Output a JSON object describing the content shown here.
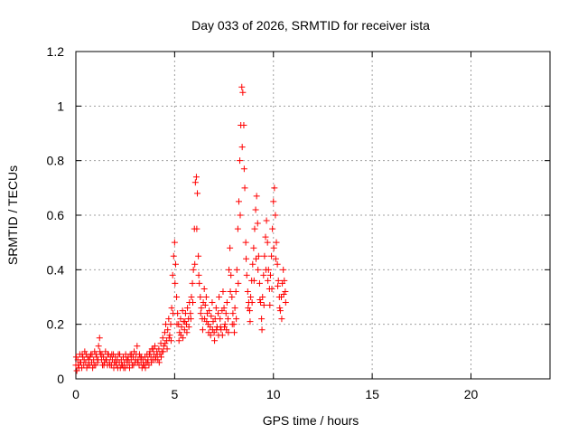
{
  "chart_data": {
    "type": "scatter",
    "title": "Day 033 of 2026, SRMTID for receiver ista",
    "xlabel": "GPS time / hours",
    "ylabel": "SRMTID / TECUs",
    "xlim": [
      0,
      24
    ],
    "ylim": [
      0,
      1.2
    ],
    "xticks": [
      0,
      5,
      10,
      15,
      20
    ],
    "xtick_labels": [
      "0",
      "5",
      "10",
      "15",
      "20"
    ],
    "yticks": [
      0,
      0.2,
      0.4,
      0.6,
      0.8,
      1.0,
      1.2
    ],
    "ytick_labels": [
      "0",
      "0.2",
      "0.4",
      "0.6",
      "0.8",
      "1",
      "1.2"
    ],
    "grid": true,
    "marker": "+",
    "series": [
      {
        "name": "SRMTID",
        "color": "#ff0000",
        "points": [
          [
            0.0,
            0.05
          ],
          [
            0.05,
            0.03
          ],
          [
            0.1,
            0.07
          ],
          [
            0.15,
            0.04
          ],
          [
            0.2,
            0.09
          ],
          [
            0.25,
            0.06
          ],
          [
            0.3,
            0.04
          ],
          [
            0.35,
            0.08
          ],
          [
            0.4,
            0.05
          ],
          [
            0.45,
            0.1
          ],
          [
            0.5,
            0.06
          ],
          [
            0.55,
            0.04
          ],
          [
            0.6,
            0.08
          ],
          [
            0.65,
            0.07
          ],
          [
            0.7,
            0.05
          ],
          [
            0.75,
            0.09
          ],
          [
            0.8,
            0.06
          ],
          [
            0.85,
            0.04
          ],
          [
            0.9,
            0.07
          ],
          [
            0.95,
            0.1
          ],
          [
            1.0,
            0.05
          ],
          [
            1.05,
            0.08
          ],
          [
            1.1,
            0.06
          ],
          [
            1.15,
            0.12
          ],
          [
            1.2,
            0.15
          ],
          [
            1.25,
            0.09
          ],
          [
            1.3,
            0.07
          ],
          [
            1.35,
            0.05
          ],
          [
            1.4,
            0.08
          ],
          [
            1.45,
            0.06
          ],
          [
            1.5,
            0.1
          ],
          [
            1.55,
            0.07
          ],
          [
            1.6,
            0.05
          ],
          [
            1.65,
            0.09
          ],
          [
            1.7,
            0.06
          ],
          [
            1.75,
            0.08
          ],
          [
            1.8,
            0.05
          ],
          [
            1.85,
            0.07
          ],
          [
            1.9,
            0.09
          ],
          [
            1.95,
            0.06
          ],
          [
            2.0,
            0.08
          ],
          [
            2.05,
            0.05
          ],
          [
            2.1,
            0.07
          ],
          [
            2.15,
            0.09
          ],
          [
            2.2,
            0.06
          ],
          [
            2.25,
            0.04
          ],
          [
            2.3,
            0.07
          ],
          [
            2.35,
            0.05
          ],
          [
            2.4,
            0.08
          ],
          [
            2.45,
            0.06
          ],
          [
            2.5,
            0.04
          ],
          [
            2.55,
            0.07
          ],
          [
            2.6,
            0.05
          ],
          [
            2.65,
            0.08
          ],
          [
            2.7,
            0.06
          ],
          [
            2.75,
            0.09
          ],
          [
            2.8,
            0.07
          ],
          [
            2.85,
            0.05
          ],
          [
            2.9,
            0.08
          ],
          [
            2.95,
            0.1
          ],
          [
            3.0,
            0.06
          ],
          [
            3.05,
            0.09
          ],
          [
            3.1,
            0.12
          ],
          [
            3.15,
            0.07
          ],
          [
            3.2,
            0.05
          ],
          [
            3.25,
            0.08
          ],
          [
            3.3,
            0.06
          ],
          [
            3.35,
            0.04
          ],
          [
            3.4,
            0.07
          ],
          [
            3.45,
            0.05
          ],
          [
            3.5,
            0.08
          ],
          [
            3.55,
            0.06
          ],
          [
            3.6,
            0.09
          ],
          [
            3.65,
            0.07
          ],
          [
            3.7,
            0.05
          ],
          [
            3.75,
            0.1
          ],
          [
            3.8,
            0.08
          ],
          [
            3.85,
            0.11
          ],
          [
            3.9,
            0.07
          ],
          [
            3.95,
            0.09
          ],
          [
            4.0,
            0.12
          ],
          [
            4.05,
            0.08
          ],
          [
            4.1,
            0.1
          ],
          [
            4.15,
            0.07
          ],
          [
            4.2,
            0.11
          ],
          [
            4.25,
            0.09
          ],
          [
            4.3,
            0.13
          ],
          [
            4.35,
            0.1
          ],
          [
            4.4,
            0.15
          ],
          [
            4.45,
            0.12
          ],
          [
            4.5,
            0.17
          ],
          [
            4.55,
            0.2
          ],
          [
            4.6,
            0.14
          ],
          [
            4.65,
            0.18
          ],
          [
            4.7,
            0.22
          ],
          [
            4.75,
            0.16
          ],
          [
            4.8,
            0.2
          ],
          [
            4.85,
            0.26
          ],
          [
            4.9,
            0.38
          ],
          [
            4.95,
            0.45
          ],
          [
            5.0,
            0.5
          ],
          [
            5.05,
            0.42
          ],
          [
            5.1,
            0.3
          ],
          [
            5.15,
            0.24
          ],
          [
            5.2,
            0.2
          ],
          [
            5.25,
            0.17
          ],
          [
            5.3,
            0.22
          ],
          [
            5.35,
            0.19
          ],
          [
            5.4,
            0.25
          ],
          [
            5.45,
            0.21
          ],
          [
            5.5,
            0.18
          ],
          [
            5.55,
            0.24
          ],
          [
            5.6,
            0.2
          ],
          [
            5.65,
            0.26
          ],
          [
            5.7,
            0.22
          ],
          [
            5.75,
            0.28
          ],
          [
            5.8,
            0.24
          ],
          [
            5.85,
            0.3
          ],
          [
            5.9,
            0.35
          ],
          [
            5.95,
            0.4
          ],
          [
            6.0,
            0.55
          ],
          [
            6.05,
            0.72
          ],
          [
            6.1,
            0.74
          ],
          [
            6.15,
            0.68
          ],
          [
            6.2,
            0.45
          ],
          [
            6.25,
            0.35
          ],
          [
            6.3,
            0.3
          ],
          [
            6.35,
            0.26
          ],
          [
            6.4,
            0.22
          ],
          [
            6.45,
            0.28
          ],
          [
            6.5,
            0.33
          ],
          [
            6.55,
            0.27
          ],
          [
            6.6,
            0.3
          ],
          [
            6.65,
            0.24
          ],
          [
            6.7,
            0.2
          ],
          [
            6.75,
            0.25
          ],
          [
            6.8,
            0.19
          ],
          [
            6.85,
            0.23
          ],
          [
            6.9,
            0.28
          ],
          [
            6.95,
            0.21
          ],
          [
            7.0,
            0.17
          ],
          [
            7.05,
            0.22
          ],
          [
            7.1,
            0.26
          ],
          [
            7.15,
            0.19
          ],
          [
            7.2,
            0.24
          ],
          [
            7.25,
            0.3
          ],
          [
            7.3,
            0.22
          ],
          [
            7.35,
            0.18
          ],
          [
            7.4,
            0.25
          ],
          [
            7.45,
            0.32
          ],
          [
            7.5,
            0.26
          ],
          [
            7.55,
            0.2
          ],
          [
            7.6,
            0.24
          ],
          [
            7.65,
            0.28
          ],
          [
            7.7,
            0.22
          ],
          [
            7.75,
            0.4
          ],
          [
            7.8,
            0.48
          ],
          [
            7.85,
            0.38
          ],
          [
            7.9,
            0.3
          ],
          [
            7.95,
            0.24
          ],
          [
            8.0,
            0.2
          ],
          [
            8.05,
            0.26
          ],
          [
            8.1,
            0.32
          ],
          [
            8.15,
            0.4
          ],
          [
            8.2,
            0.55
          ],
          [
            8.25,
            0.65
          ],
          [
            8.3,
            0.8
          ],
          [
            8.35,
            0.93
          ],
          [
            8.4,
            1.07
          ],
          [
            8.45,
            1.05
          ],
          [
            8.5,
            0.93
          ],
          [
            8.55,
            0.7
          ],
          [
            8.6,
            0.5
          ],
          [
            8.65,
            0.38
          ],
          [
            8.7,
            0.32
          ],
          [
            8.75,
            0.28
          ],
          [
            8.8,
            0.25
          ],
          [
            8.85,
            0.3
          ],
          [
            8.9,
            0.36
          ],
          [
            8.95,
            0.42
          ],
          [
            9.0,
            0.48
          ],
          [
            9.05,
            0.55
          ],
          [
            9.1,
            0.62
          ],
          [
            9.15,
            0.67
          ],
          [
            9.2,
            0.57
          ],
          [
            9.25,
            0.45
          ],
          [
            9.3,
            0.35
          ],
          [
            9.35,
            0.28
          ],
          [
            9.4,
            0.22
          ],
          [
            9.45,
            0.3
          ],
          [
            9.5,
            0.38
          ],
          [
            9.55,
            0.45
          ],
          [
            9.6,
            0.52
          ],
          [
            9.65,
            0.58
          ],
          [
            9.7,
            0.5
          ],
          [
            9.75,
            0.4
          ],
          [
            9.8,
            0.33
          ],
          [
            9.85,
            0.38
          ],
          [
            9.9,
            0.45
          ],
          [
            9.95,
            0.55
          ],
          [
            10.0,
            0.65
          ],
          [
            10.05,
            0.7
          ],
          [
            10.1,
            0.6
          ],
          [
            10.15,
            0.5
          ],
          [
            10.2,
            0.42
          ],
          [
            10.25,
            0.36
          ],
          [
            10.3,
            0.3
          ],
          [
            10.35,
            0.25
          ],
          [
            10.4,
            0.3
          ],
          [
            10.45,
            0.35
          ],
          [
            10.5,
            0.4
          ],
          [
            10.55,
            0.36
          ],
          [
            10.6,
            0.32
          ],
          [
            0.02,
            0.08
          ],
          [
            0.12,
            0.05
          ],
          [
            0.22,
            0.06
          ],
          [
            0.32,
            0.09
          ],
          [
            0.42,
            0.07
          ],
          [
            0.52,
            0.09
          ],
          [
            0.62,
            0.05
          ],
          [
            0.72,
            0.08
          ],
          [
            0.82,
            0.09
          ],
          [
            0.92,
            0.05
          ],
          [
            1.02,
            0.09
          ],
          [
            1.12,
            0.07
          ],
          [
            1.22,
            0.1
          ],
          [
            1.32,
            0.09
          ],
          [
            1.42,
            0.05
          ],
          [
            1.52,
            0.07
          ],
          [
            1.62,
            0.09
          ],
          [
            1.72,
            0.05
          ],
          [
            1.82,
            0.09
          ],
          [
            1.92,
            0.04
          ],
          [
            2.02,
            0.06
          ],
          [
            2.12,
            0.04
          ],
          [
            2.22,
            0.09
          ],
          [
            2.32,
            0.05
          ],
          [
            2.42,
            0.04
          ],
          [
            2.52,
            0.09
          ],
          [
            2.62,
            0.07
          ],
          [
            2.72,
            0.04
          ],
          [
            2.82,
            0.09
          ],
          [
            2.92,
            0.05
          ],
          [
            3.02,
            0.07
          ],
          [
            3.12,
            0.06
          ],
          [
            3.22,
            0.09
          ],
          [
            3.32,
            0.08
          ],
          [
            3.42,
            0.05
          ],
          [
            3.52,
            0.04
          ],
          [
            3.62,
            0.06
          ],
          [
            3.72,
            0.09
          ],
          [
            3.82,
            0.06
          ],
          [
            3.92,
            0.11
          ],
          [
            4.02,
            0.07
          ],
          [
            4.12,
            0.09
          ],
          [
            4.22,
            0.06
          ],
          [
            4.32,
            0.08
          ],
          [
            4.42,
            0.1
          ],
          [
            4.52,
            0.13
          ],
          [
            4.62,
            0.11
          ],
          [
            4.72,
            0.15
          ],
          [
            4.82,
            0.14
          ],
          [
            4.92,
            0.24
          ],
          [
            5.02,
            0.35
          ],
          [
            5.12,
            0.2
          ],
          [
            5.22,
            0.14
          ],
          [
            5.32,
            0.16
          ],
          [
            5.42,
            0.15
          ],
          [
            5.52,
            0.21
          ],
          [
            5.62,
            0.17
          ],
          [
            5.72,
            0.19
          ],
          [
            5.82,
            0.22
          ],
          [
            5.92,
            0.28
          ],
          [
            6.02,
            0.42
          ],
          [
            6.12,
            0.55
          ],
          [
            6.22,
            0.38
          ],
          [
            6.32,
            0.24
          ],
          [
            6.42,
            0.18
          ],
          [
            6.52,
            0.22
          ],
          [
            6.62,
            0.21
          ],
          [
            6.72,
            0.17
          ],
          [
            6.82,
            0.16
          ],
          [
            6.92,
            0.18
          ],
          [
            7.02,
            0.14
          ],
          [
            7.12,
            0.18
          ],
          [
            7.22,
            0.16
          ],
          [
            7.32,
            0.19
          ],
          [
            7.42,
            0.16
          ],
          [
            7.52,
            0.19
          ],
          [
            7.62,
            0.18
          ],
          [
            7.72,
            0.17
          ],
          [
            7.82,
            0.32
          ],
          [
            7.92,
            0.2
          ],
          [
            8.02,
            0.17
          ],
          [
            8.12,
            0.22
          ],
          [
            8.22,
            0.35
          ],
          [
            8.32,
            0.6
          ],
          [
            8.42,
            0.85
          ],
          [
            8.52,
            0.77
          ],
          [
            8.62,
            0.44
          ],
          [
            8.72,
            0.26
          ],
          [
            8.82,
            0.21
          ],
          [
            8.92,
            0.28
          ],
          [
            9.02,
            0.36
          ],
          [
            9.12,
            0.44
          ],
          [
            9.22,
            0.4
          ],
          [
            9.32,
            0.29
          ],
          [
            9.42,
            0.18
          ],
          [
            9.52,
            0.27
          ],
          [
            9.62,
            0.4
          ],
          [
            9.72,
            0.36
          ],
          [
            9.82,
            0.27
          ],
          [
            9.92,
            0.33
          ],
          [
            10.02,
            0.48
          ],
          [
            10.12,
            0.44
          ],
          [
            10.22,
            0.34
          ],
          [
            10.32,
            0.26
          ],
          [
            10.42,
            0.22
          ],
          [
            10.52,
            0.31
          ],
          [
            10.62,
            0.28
          ]
        ]
      }
    ]
  }
}
